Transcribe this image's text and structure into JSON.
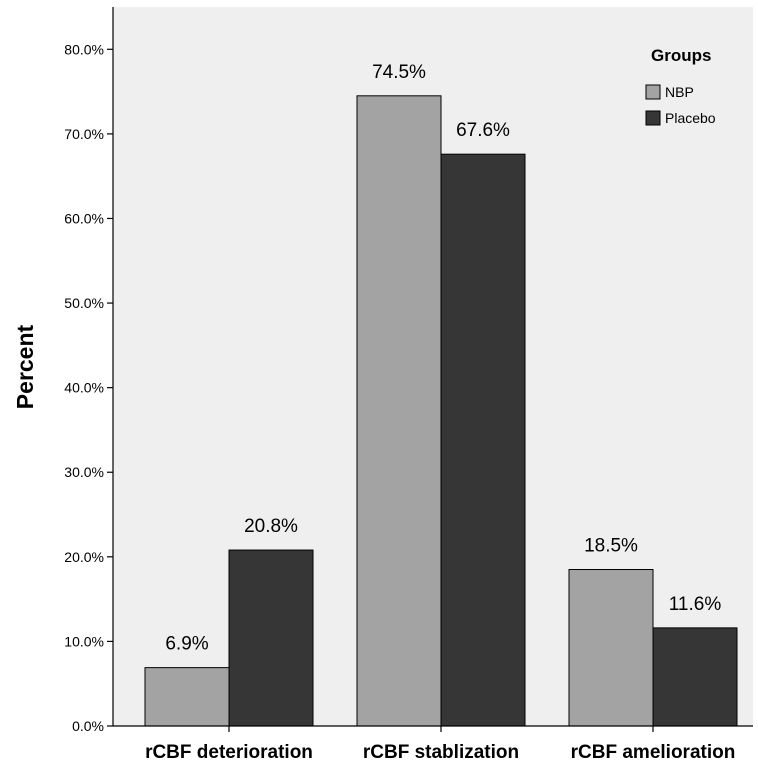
{
  "chart_data": {
    "type": "bar",
    "ylabel": "Percent",
    "xlabel": "",
    "ylim": [
      0,
      85
    ],
    "yticks": [
      0,
      10,
      20,
      30,
      40,
      50,
      60,
      70,
      80
    ],
    "ytick_labels": [
      "0.0%",
      "10.0%",
      "20.0%",
      "30.0%",
      "40.0%",
      "50.0%",
      "60.0%",
      "70.0%",
      "80.0%"
    ],
    "categories": [
      "rCBF deterioration",
      "rCBF stablization",
      "rCBF amelioration"
    ],
    "series": [
      {
        "name": "NBP",
        "color": "#a3a3a3",
        "values": [
          6.9,
          74.5,
          18.5
        ],
        "labels": [
          "6.9%",
          "74.5%",
          "18.5%"
        ]
      },
      {
        "name": "Placebo",
        "color": "#363636",
        "values": [
          20.8,
          67.6,
          11.6
        ],
        "labels": [
          "20.8%",
          "67.6%",
          "11.6%"
        ]
      }
    ],
    "legend": {
      "title": "Groups",
      "position": "top-right"
    },
    "grid": false,
    "background_color": "#efefef"
  }
}
